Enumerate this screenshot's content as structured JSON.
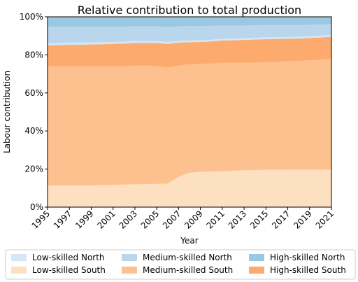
{
  "chart_data": {
    "type": "area",
    "title": "Relative contribution to total production",
    "xlabel": "Year",
    "ylabel": "Labour contribution",
    "xlim": [
      1995,
      2021
    ],
    "ylim": [
      0,
      100
    ],
    "x_ticks": [
      "1995",
      "1997",
      "1999",
      "2001",
      "2003",
      "2005",
      "2007",
      "2009",
      "2011",
      "2013",
      "2015",
      "2017",
      "2019",
      "2021"
    ],
    "y_ticks": [
      "0%",
      "20%",
      "40%",
      "60%",
      "80%",
      "100%"
    ],
    "stacked": true,
    "legend_position": "bottom",
    "x": [
      1995,
      1996,
      1997,
      1998,
      1999,
      2000,
      2001,
      2002,
      2003,
      2004,
      2005,
      2006,
      2007,
      2008,
      2009,
      2010,
      2011,
      2012,
      2013,
      2014,
      2015,
      2016,
      2017,
      2018,
      2019,
      2020,
      2021
    ],
    "series": [
      {
        "name": "Low-skilled South",
        "color": "#fde0c0",
        "values": [
          11.5,
          11.5,
          11.5,
          11.5,
          11.5,
          11.7,
          11.8,
          12.0,
          12.1,
          12.2,
          12.3,
          12.5,
          16.0,
          18.2,
          18.6,
          18.8,
          19.0,
          19.2,
          19.5,
          19.6,
          19.7,
          19.7,
          19.8,
          19.8,
          19.8,
          19.8,
          19.8
        ]
      },
      {
        "name": "Medium-skilled South",
        "color": "#fdc18f",
        "values": [
          62.7,
          62.7,
          62.7,
          62.7,
          62.7,
          62.5,
          62.3,
          62.2,
          62.4,
          62.4,
          62.0,
          61.0,
          58.5,
          57.0,
          56.8,
          56.8,
          57.0,
          56.8,
          56.5,
          56.5,
          56.6,
          56.8,
          57.0,
          57.2,
          57.5,
          57.8,
          58.2
        ]
      },
      {
        "name": "High-skilled South",
        "color": "#fdaa6e",
        "values": [
          10.8,
          11.0,
          11.2,
          11.2,
          11.3,
          11.4,
          11.7,
          11.8,
          11.8,
          11.7,
          12.0,
          12.3,
          12.0,
          11.5,
          11.4,
          11.5,
          11.6,
          11.7,
          11.9,
          12.0,
          12.0,
          11.9,
          11.7,
          11.6,
          11.6,
          11.6,
          11.6
        ]
      },
      {
        "name": "Low-skilled North",
        "color": "#d6e6f5",
        "values": [
          1.2,
          1.2,
          1.2,
          1.2,
          1.2,
          1.2,
          1.1,
          1.1,
          1.1,
          1.1,
          1.1,
          1.1,
          1.0,
          1.0,
          1.0,
          1.0,
          1.0,
          1.0,
          1.0,
          1.0,
          1.0,
          1.0,
          1.0,
          1.0,
          1.0,
          1.0,
          1.0
        ]
      },
      {
        "name": "Medium-skilled North",
        "color": "#b9d6ec",
        "values": [
          8.8,
          8.6,
          8.4,
          8.4,
          8.3,
          8.2,
          8.0,
          7.9,
          7.8,
          7.8,
          7.8,
          7.8,
          7.7,
          7.6,
          7.5,
          7.3,
          7.0,
          6.9,
          6.7,
          6.6,
          6.5,
          6.4,
          6.3,
          6.2,
          6.1,
          5.9,
          5.6
        ]
      },
      {
        "name": "High-skilled North",
        "color": "#9ac8e2",
        "values": [
          5.0,
          5.0,
          5.0,
          5.0,
          5.0,
          5.0,
          5.1,
          5.0,
          4.8,
          4.8,
          4.8,
          4.8,
          4.8,
          4.7,
          4.7,
          4.6,
          4.4,
          4.4,
          4.4,
          4.3,
          4.2,
          4.2,
          4.2,
          4.2,
          4.0,
          3.9,
          3.8
        ]
      }
    ],
    "legend_order": [
      "Low-skilled North",
      "Medium-skilled North",
      "High-skilled North",
      "Low-skilled South",
      "Medium-skilled South",
      "High-skilled South"
    ]
  }
}
